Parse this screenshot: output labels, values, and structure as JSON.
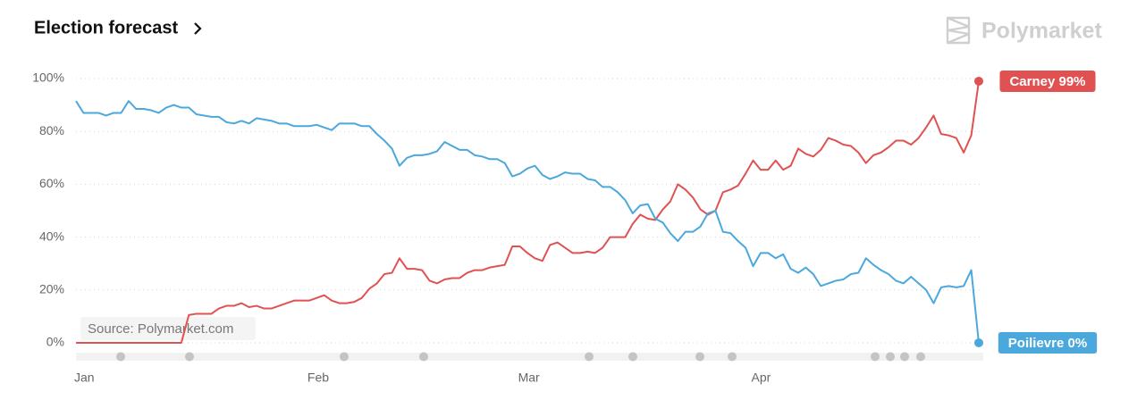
{
  "chart_data": {
    "type": "line",
    "title": "Election forecast",
    "brand": "Polymarket",
    "source": "Source: Polymarket.com",
    "categories": [
      "Jan",
      null,
      null,
      null,
      null,
      null,
      null,
      null,
      null,
      null,
      null,
      null,
      null,
      null,
      null,
      null,
      null,
      null,
      null,
      null,
      null,
      null,
      null,
      null,
      null,
      null,
      null,
      null,
      null,
      null,
      null,
      "Feb",
      null,
      null,
      null,
      null,
      null,
      null,
      null,
      null,
      null,
      null,
      null,
      null,
      null,
      null,
      null,
      null,
      null,
      null,
      null,
      null,
      null,
      null,
      null,
      null,
      null,
      null,
      null,
      "Mar",
      null,
      null,
      null,
      null,
      null,
      null,
      null,
      null,
      null,
      null,
      null,
      null,
      null,
      null,
      null,
      null,
      null,
      null,
      null,
      null,
      null,
      null,
      null,
      null,
      null,
      null,
      null,
      null,
      null,
      null,
      "Apr",
      null,
      null,
      null,
      null,
      null,
      null,
      null,
      null,
      null,
      null,
      null,
      null,
      null,
      null,
      null,
      null,
      null,
      null,
      null,
      null,
      null,
      null,
      null,
      null,
      null,
      null,
      null,
      null,
      null,
      null
    ],
    "series": [
      {
        "name": "Carney",
        "label": "Carney 99%",
        "color": "#e05252",
        "values": [
          0,
          0,
          0,
          0,
          0,
          0,
          0,
          0,
          0,
          0,
          0,
          0,
          0,
          0,
          0,
          10.5,
          11,
          11,
          11,
          13,
          14,
          14,
          15,
          13.5,
          14,
          13,
          13,
          14,
          15,
          16,
          16,
          16,
          17,
          18,
          16,
          15,
          15,
          15.5,
          17,
          20.5,
          22.5,
          26,
          26.5,
          32,
          28,
          28,
          27.5,
          23.5,
          22.5,
          24,
          24.5,
          24.5,
          26.5,
          27.5,
          27.5,
          28.5,
          29,
          29.5,
          36.5,
          36.5,
          34,
          32,
          31,
          37,
          38,
          36,
          34,
          34,
          34.5,
          34,
          36,
          40,
          40,
          40,
          45,
          48.5,
          47,
          46.5,
          50.5,
          53.5,
          60,
          58,
          55,
          50.5,
          48.5,
          50,
          57,
          58,
          59.5,
          64,
          69,
          65.5,
          65.5,
          69,
          65.5,
          67,
          73.5,
          71.5,
          70.5,
          73,
          77.5,
          76.5,
          75,
          74.5,
          72,
          68,
          71,
          72,
          74,
          76.5,
          76.5,
          75,
          77.5,
          81.5,
          86,
          79,
          78.5,
          77.5,
          72,
          78.5,
          99
        ]
      },
      {
        "name": "Poilievre",
        "label": "Poilievre 0%",
        "color": "#4aa8dc",
        "values": [
          91.5,
          87,
          87,
          87,
          86,
          87,
          87,
          91.5,
          88.5,
          88.5,
          88,
          87,
          89,
          90,
          89,
          89,
          86.5,
          86,
          85.5,
          85.5,
          83.5,
          83,
          84,
          83,
          85,
          84.5,
          84,
          83,
          83,
          82,
          82,
          82,
          82.5,
          81.5,
          80.5,
          83,
          83,
          83,
          82,
          82,
          79,
          76.5,
          73.5,
          67,
          70,
          71,
          71,
          71.5,
          72.5,
          76,
          74.5,
          73,
          73,
          71,
          70.5,
          69.5,
          69.5,
          68,
          63,
          64,
          66,
          67,
          63.5,
          62,
          63,
          64.5,
          64,
          64,
          62,
          61.5,
          59,
          59,
          57,
          54,
          49,
          52,
          52.5,
          47,
          45.5,
          41.5,
          38.5,
          42,
          42,
          44,
          49,
          50,
          42,
          41.5,
          38.5,
          36,
          29,
          34,
          34,
          32,
          33.5,
          28,
          26.5,
          28.5,
          26,
          21.5,
          22.5,
          23.5,
          24,
          26,
          26.5,
          32,
          29.5,
          27.5,
          26,
          23.5,
          22.5,
          25,
          22.5,
          20,
          15,
          21,
          21.5,
          21,
          21.5,
          27.5,
          0
        ]
      }
    ],
    "ylim": [
      0,
      100
    ],
    "yticks": [
      {
        "value": 0,
        "label": "0%"
      },
      {
        "value": 20,
        "label": "20%"
      },
      {
        "value": 40,
        "label": "40%"
      },
      {
        "value": 60,
        "label": "60%"
      },
      {
        "value": 80,
        "label": "80%"
      },
      {
        "value": 100,
        "label": "100%"
      }
    ],
    "grid": true
  }
}
